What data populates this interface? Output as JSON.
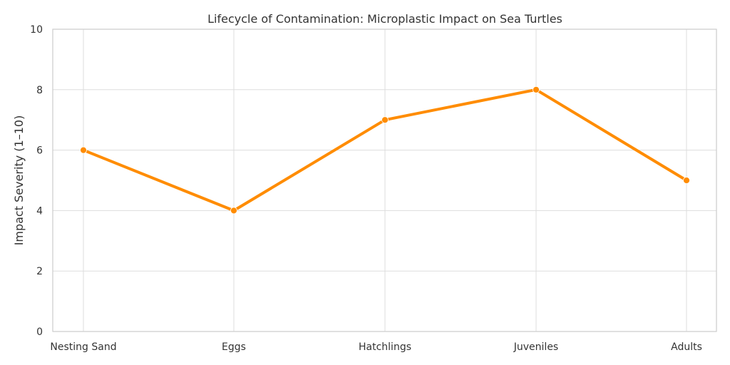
{
  "chart_data": {
    "type": "line",
    "title": "Lifecycle of Contamination: Microplastic Impact on Sea Turtles",
    "xlabel": "",
    "ylabel": "Impact Severity (1–10)",
    "categories": [
      "Nesting Sand",
      "Eggs",
      "Hatchlings",
      "Juveniles",
      "Adults"
    ],
    "series": [
      {
        "values": [
          6,
          4,
          7,
          8,
          5
        ]
      }
    ],
    "ylim": [
      0,
      10
    ],
    "yticks": [
      0,
      2,
      4,
      6,
      8,
      10
    ],
    "grid": true,
    "line_color": "#ff8c00",
    "grid_color": "#dddddd",
    "axis_color": "#cccccc",
    "text_color": "#333333"
  }
}
